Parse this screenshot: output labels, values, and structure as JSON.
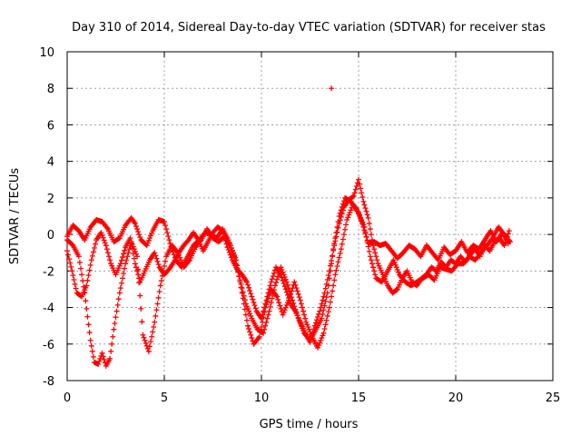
{
  "chart_data": {
    "type": "scatter",
    "title": "Day 310 of 2014, Sidereal Day-to-day VTEC variation (SDTVAR) for receiver stas",
    "xlabel": "GPS time / hours",
    "ylabel": "SDTVAR / TECUs",
    "xlim": [
      0,
      25
    ],
    "ylim": [
      -8,
      10
    ],
    "xticks": [
      {
        "v": 0,
        "label": "0"
      },
      {
        "v": 5,
        "label": "5"
      },
      {
        "v": 10,
        "label": "10"
      },
      {
        "v": 15,
        "label": "15"
      },
      {
        "v": 20,
        "label": "20"
      },
      {
        "v": 25,
        "label": "25"
      }
    ],
    "yticks": [
      {
        "v": -8,
        "label": "-8"
      },
      {
        "v": -6,
        "label": "-6"
      },
      {
        "v": -4,
        "label": "-4"
      },
      {
        "v": -2,
        "label": "-2"
      },
      {
        "v": 0,
        "label": "0"
      },
      {
        "v": 2,
        "label": "2"
      },
      {
        "v": 4,
        "label": "4"
      },
      {
        "v": 6,
        "label": "6"
      },
      {
        "v": 8,
        "label": "8"
      },
      {
        "v": 10,
        "label": "10"
      }
    ],
    "grid": true,
    "marker": "+",
    "series": [
      {
        "name": "track-a",
        "color": "#ff0000",
        "x": [
          0.0,
          0.3,
          0.6,
          0.9,
          1.2,
          1.5,
          1.8,
          2.1,
          2.4,
          2.7,
          3.0,
          3.3,
          3.5,
          3.8,
          4.1,
          4.4,
          4.7,
          5.0,
          5.3,
          5.6,
          5.9,
          6.2,
          6.5,
          6.8,
          7.1,
          7.4,
          7.7,
          8.0,
          8.3,
          8.6,
          8.9,
          9.2,
          9.5,
          9.8,
          10.1,
          10.4,
          10.7,
          11.0,
          11.3,
          11.6,
          11.9,
          12.2,
          12.5,
          12.8,
          13.1,
          13.4,
          13.7,
          14.0,
          14.3,
          14.6,
          14.9,
          15.2,
          15.5,
          15.8,
          16.1,
          16.4,
          16.7,
          17.0,
          17.3,
          17.6,
          17.9,
          18.2,
          18.5,
          18.8,
          19.1,
          19.4,
          19.7,
          20.0,
          20.3,
          20.6,
          20.9,
          21.2,
          21.5,
          21.8,
          22.1,
          22.4,
          22.7
        ],
        "y": [
          -0.1,
          0.5,
          0.2,
          -0.3,
          0.4,
          0.8,
          0.7,
          0.3,
          -0.4,
          -0.2,
          0.5,
          0.9,
          0.6,
          -0.3,
          -0.6,
          0.2,
          0.8,
          0.7,
          -0.5,
          -1.4,
          -1.8,
          -1.2,
          -0.6,
          -0.3,
          0.1,
          0.0,
          -0.2,
          0.3,
          -0.3,
          -1.2,
          -2.5,
          -3.8,
          -4.6,
          -5.2,
          -5.4,
          -4.2,
          -2.8,
          -1.8,
          -2.6,
          -3.6,
          -4.6,
          -5.4,
          -5.8,
          -5.2,
          -4.6,
          -3.2,
          -0.8,
          1.0,
          2.0,
          1.8,
          1.4,
          0.6,
          -0.5,
          -0.4,
          -0.6,
          -0.5,
          -0.9,
          -1.3,
          -1.0,
          -0.6,
          -0.8,
          -1.2,
          -0.6,
          -1.0,
          -1.4,
          -0.7,
          -1.1,
          -0.9,
          -0.4,
          -1.0,
          -0.6,
          -0.8,
          -0.3,
          0.2,
          -0.4,
          0.1,
          -0.5
        ]
      },
      {
        "name": "track-b",
        "color": "#ff0000",
        "x": [
          0.0,
          0.25,
          0.5,
          0.75,
          1.0,
          1.25,
          1.5,
          1.75,
          2.0,
          2.25,
          2.5,
          2.75,
          3.0,
          3.25,
          3.5,
          3.75,
          4.0,
          4.25,
          4.5,
          4.75,
          5.0,
          5.25,
          5.5,
          5.75,
          6.0,
          6.25,
          6.5,
          6.75,
          7.0,
          7.25,
          7.5,
          7.75,
          8.0,
          8.25,
          8.5,
          8.75,
          9.0,
          9.25,
          9.5,
          9.75,
          10.0,
          10.25,
          10.5,
          10.75,
          11.0,
          11.25,
          11.5,
          11.75,
          12.0,
          12.25,
          12.5,
          12.75,
          13.0,
          13.25,
          13.5,
          13.75,
          14.0,
          14.25,
          14.5,
          14.75,
          15.0,
          15.25,
          15.5,
          15.75,
          16.0,
          16.25,
          16.5,
          16.75,
          17.0,
          17.25,
          17.5,
          17.75,
          18.0,
          18.25,
          18.5,
          18.75,
          19.0,
          19.25,
          19.5,
          19.75,
          20.0,
          20.25,
          20.5,
          20.75,
          21.0,
          21.25,
          21.5,
          21.75,
          22.0,
          22.25,
          22.5,
          22.75
        ],
        "y": [
          -0.9,
          -2.0,
          -3.2,
          -3.4,
          -2.8,
          -1.4,
          -0.3,
          0.1,
          -0.6,
          -1.6,
          -2.2,
          -1.6,
          -0.7,
          -0.2,
          -1.6,
          -2.6,
          -2.0,
          -1.4,
          -1.0,
          -1.8,
          -2.2,
          -1.9,
          -1.5,
          -1.0,
          -0.6,
          -0.3,
          0.1,
          -0.3,
          -0.9,
          -0.4,
          0.1,
          0.4,
          0.2,
          -0.7,
          -1.4,
          -1.9,
          -2.2,
          -2.6,
          -3.4,
          -4.2,
          -4.6,
          -3.6,
          -2.6,
          -1.8,
          -2.2,
          -3.0,
          -3.8,
          -4.2,
          -4.8,
          -5.4,
          -5.9,
          -5.0,
          -4.2,
          -3.2,
          -2.0,
          -0.6,
          0.6,
          1.5,
          1.9,
          2.1,
          3.0,
          1.8,
          0.9,
          -0.6,
          -1.6,
          -2.2,
          -2.8,
          -3.2,
          -3.0,
          -2.4,
          -2.0,
          -2.6,
          -2.8,
          -2.4,
          -2.2,
          -1.8,
          -2.0,
          -1.5,
          -1.8,
          -1.4,
          -1.6,
          -1.2,
          -1.5,
          -1.1,
          -0.8,
          -1.2,
          -0.6,
          -0.9,
          -0.4,
          -0.2,
          -0.6,
          0.2
        ]
      },
      {
        "name": "track-c",
        "color": "#ff0000",
        "x": [
          0.0,
          0.3,
          0.6,
          0.9,
          1.2,
          1.4,
          1.6,
          1.8,
          2.0,
          2.2,
          2.4,
          2.7,
          3.0,
          3.3,
          3.6,
          3.9,
          4.2,
          4.5,
          4.8,
          5.1,
          5.4,
          5.7,
          6.0,
          6.3,
          6.6,
          6.9,
          7.2,
          7.5,
          7.8,
          8.1,
          8.4,
          8.7,
          9.0,
          9.3,
          9.6,
          9.9,
          10.2,
          10.5,
          10.8,
          11.1,
          11.4,
          11.7,
          12.0,
          12.3,
          12.6,
          12.9,
          13.2,
          13.5,
          13.8,
          14.1,
          14.4,
          14.7,
          15.0,
          15.3,
          15.6,
          15.9,
          16.2,
          16.5,
          16.8,
          17.1,
          17.4,
          17.7,
          18.0,
          18.3,
          18.6,
          18.9,
          19.2,
          19.5,
          19.8,
          20.1,
          20.4,
          20.7,
          21.0,
          21.3,
          21.6,
          21.9,
          22.2,
          22.5,
          22.8
        ],
        "y": [
          -0.3,
          -0.6,
          -1.2,
          -3.2,
          -5.8,
          -7.0,
          -7.1,
          -6.5,
          -7.2,
          -6.8,
          -5.2,
          -3.2,
          -1.6,
          -0.4,
          -1.2,
          -5.5,
          -6.4,
          -4.8,
          -2.8,
          -1.2,
          -0.6,
          -1.0,
          -1.8,
          -1.4,
          -0.7,
          -0.3,
          0.3,
          -0.2,
          -0.4,
          -0.1,
          -0.6,
          -1.4,
          -3.2,
          -5.0,
          -6.0,
          -5.6,
          -4.0,
          -3.0,
          -3.4,
          -4.4,
          -3.6,
          -2.6,
          -3.6,
          -4.8,
          -5.6,
          -6.2,
          -5.4,
          -4.0,
          -2.2,
          -0.8,
          0.8,
          1.6,
          1.2,
          0.4,
          -1.2,
          -2.4,
          -2.6,
          -2.0,
          -1.4,
          -2.2,
          -2.6,
          -2.8,
          -2.6,
          -2.4,
          -2.2,
          -2.5,
          -1.8,
          -1.9,
          -2.0,
          -1.6,
          -1.6,
          -1.2,
          -1.4,
          -1.0,
          -0.6,
          -0.2,
          0.4,
          0.0,
          -0.4
        ]
      },
      {
        "name": "outlier",
        "color": "#ff0000",
        "x": [
          13.6
        ],
        "y": [
          8.0
        ]
      }
    ]
  }
}
